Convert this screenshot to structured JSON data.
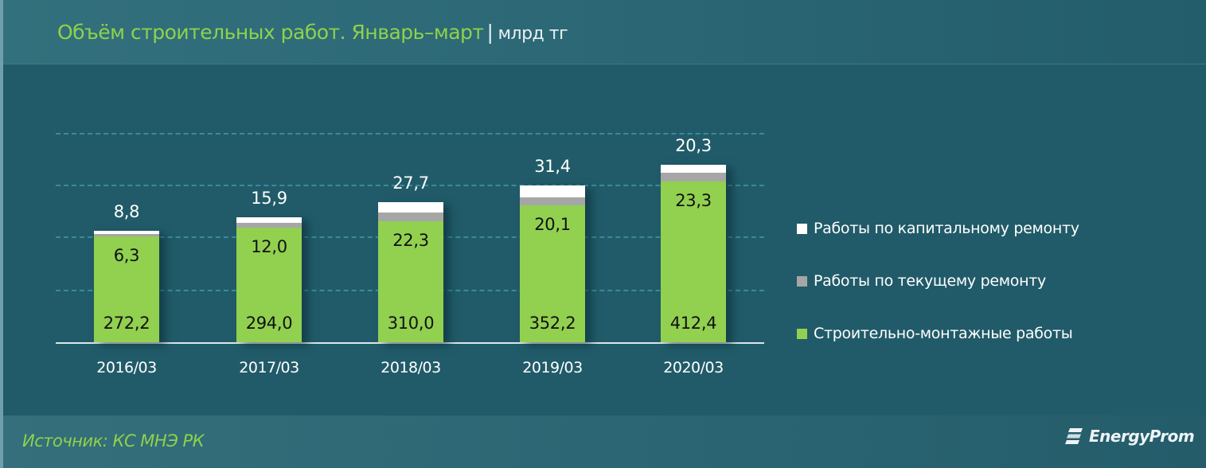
{
  "header": {
    "title": "Объём строительных работ. Январь–март",
    "separator": "|",
    "unit": "млрд тг"
  },
  "footer": {
    "source": "Источник: КС МНЭ РК",
    "brand": "EnergyProm"
  },
  "colors": {
    "background": "#215b69",
    "title_green": "#8ed24c",
    "smr": "#92d050",
    "current_repair": "#a6a6a6",
    "capital_repair": "#ffffff"
  },
  "legend": [
    {
      "label": "Работы по капитальному ремонту",
      "color": "#ffffff"
    },
    {
      "label": "Работы по текущему ремонту",
      "color": "#a6a6a6"
    },
    {
      "label": "Строительно-монтажные работы",
      "color": "#92d050"
    }
  ],
  "bars": [
    {
      "category": "2016/03",
      "smr": "272,2",
      "cur": "6,3",
      "cap": "8,8"
    },
    {
      "category": "2017/03",
      "smr": "294,0",
      "cur": "12,0",
      "cap": "15,9"
    },
    {
      "category": "2018/03",
      "smr": "310,0",
      "cur": "22,3",
      "cap": "27,7"
    },
    {
      "category": "2019/03",
      "smr": "352,2",
      "cur": "20,1",
      "cap": "31,4"
    },
    {
      "category": "2020/03",
      "smr": "412,4",
      "cur": "23,3",
      "cap": "20,3"
    }
  ],
  "chart_data": {
    "type": "bar",
    "stacked": true,
    "title": "Объём строительных работ. Январь–март",
    "subtitle": "млрд тг",
    "xlabel": "",
    "ylabel": "",
    "categories": [
      "2016/03",
      "2017/03",
      "2018/03",
      "2019/03",
      "2020/03"
    ],
    "series": [
      {
        "name": "Строительно-монтажные работы",
        "color": "#92d050",
        "values": [
          272.2,
          294.0,
          310.0,
          352.2,
          412.4
        ]
      },
      {
        "name": "Работы по текущему ремонту",
        "color": "#a6a6a6",
        "values": [
          6.3,
          12.0,
          22.3,
          20.1,
          23.3
        ]
      },
      {
        "name": "Работы по капитальному ремонту",
        "color": "#ffffff",
        "values": [
          8.8,
          15.9,
          27.7,
          31.4,
          20.3
        ]
      }
    ],
    "y_axis_visible": false,
    "grid": "horizontal dashed",
    "legend_position": "right",
    "source": "Источник: КС МНЭ РК"
  }
}
